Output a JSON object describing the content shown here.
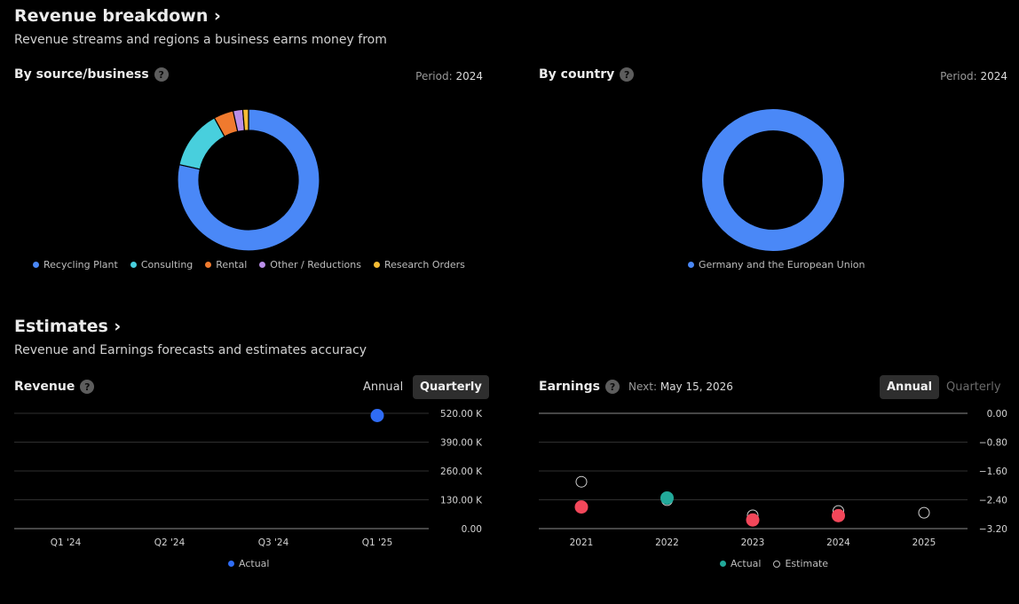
{
  "revenue_breakdown": {
    "title": "Revenue breakdown",
    "chevron": "›",
    "subtitle": "Revenue streams and regions a business earns money from"
  },
  "by_source": {
    "title": "By source/business",
    "period_label": "Period:",
    "period_value": "2024"
  },
  "by_country": {
    "title": "By country",
    "period_label": "Period:",
    "period_value": "2024"
  },
  "estimates": {
    "title": "Estimates",
    "chevron": "›",
    "subtitle": "Revenue and Earnings forecasts and estimates accuracy"
  },
  "revenue_panel": {
    "title": "Revenue",
    "toggle_annual": "Annual",
    "toggle_quarterly": "Quarterly"
  },
  "earnings_panel": {
    "title": "Earnings",
    "next_label": "Next:",
    "next_value": "May 15, 2026",
    "toggle_annual": "Annual",
    "toggle_quarterly": "Quarterly"
  },
  "help_glyph": "?",
  "colors": {
    "blue": "#4a88f7",
    "cyan": "#48cfdd",
    "orange": "#f07a2e",
    "purple": "#b98ee8",
    "yellow": "#f6bc34",
    "actual_blue": "#2f6cf5",
    "teal": "#22a99a",
    "red": "#f2475a"
  },
  "chart_data": [
    {
      "id": "source",
      "type": "pie",
      "title": "By source/business",
      "labels": [
        "Recycling Plant",
        "Consulting",
        "Rental",
        "Other / Reductions",
        "Research Orders"
      ],
      "values": [
        78.5,
        13.5,
        4.5,
        2.2,
        1.3
      ],
      "colors": [
        "#4a88f7",
        "#48cfdd",
        "#f07a2e",
        "#b98ee8",
        "#f6bc34"
      ]
    },
    {
      "id": "country",
      "type": "pie",
      "title": "By country",
      "labels": [
        "Germany and the European Union"
      ],
      "values": [
        100
      ],
      "colors": [
        "#4a88f7"
      ]
    },
    {
      "id": "revenue",
      "type": "scatter",
      "title": "Revenue",
      "categories": [
        "Q1 '24",
        "Q2 '24",
        "Q3 '24",
        "Q1 '25"
      ],
      "y_ticks": [
        "520.00 K",
        "390.00 K",
        "260.00 K",
        "130.00 K",
        "0.00"
      ],
      "ylim": [
        0,
        520000
      ],
      "series": [
        {
          "name": "Actual",
          "values": [
            null,
            null,
            null,
            510000
          ],
          "color": "#2f6cf5"
        }
      ]
    },
    {
      "id": "earnings",
      "type": "scatter",
      "title": "Earnings",
      "categories": [
        "2021",
        "2022",
        "2023",
        "2024",
        "2025"
      ],
      "y_ticks": [
        "0.00",
        "−0.80",
        "−1.60",
        "−2.40",
        "−3.20"
      ],
      "ylim": [
        -3.2,
        0
      ],
      "series": [
        {
          "name": "Actual",
          "values": [
            -2.6,
            -2.35,
            -2.96,
            -2.84,
            null
          ],
          "colors": [
            "#f2475a",
            "#22a99a",
            "#f2475a",
            "#f2475a",
            null
          ]
        },
        {
          "name": "Estimate",
          "values": [
            -1.9,
            -2.41,
            -2.83,
            -2.71,
            -2.76
          ]
        }
      ]
    }
  ]
}
